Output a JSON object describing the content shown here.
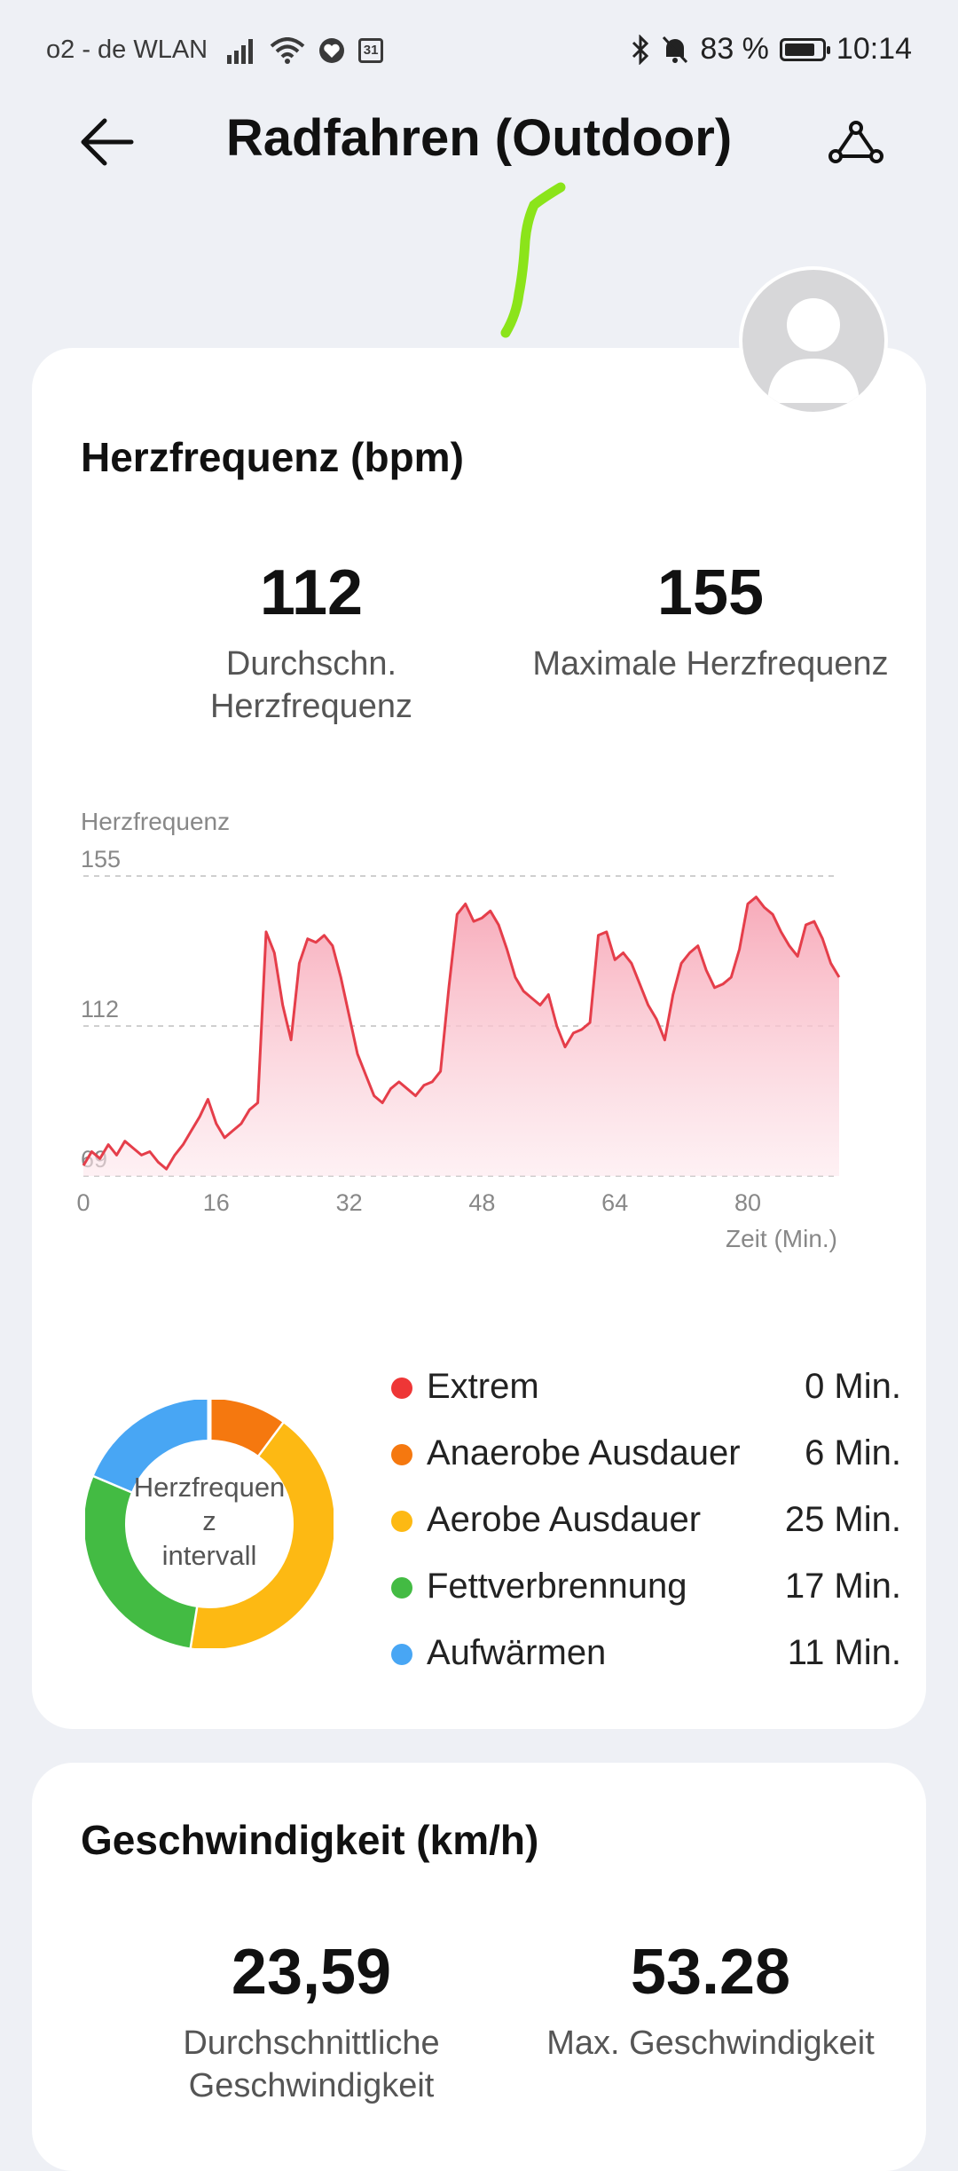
{
  "status_bar": {
    "carrier": "o2 - de WLAN",
    "calendar_day": "31",
    "battery": "83 %",
    "battery_level": 0.83,
    "time": "10:14"
  },
  "header": {
    "title": "Radfahren (Outdoor)"
  },
  "heart_rate": {
    "section_title": "Herzfrequenz (bpm)",
    "avg_value": "112",
    "avg_label_line1": "Durchschn.",
    "avg_label_line2": "Herzfrequenz",
    "max_value": "155",
    "max_label": "Maximale Herzfrequenz",
    "zone_center_line1": "Herzfrequen",
    "zone_center_line2": "z",
    "zone_center_line3": "intervall",
    "zones": [
      {
        "name": "Extrem",
        "value": "0 Min.",
        "minutes": 0,
        "color": "#ee3636"
      },
      {
        "name": "Anaerobe Ausdauer",
        "value": "6 Min.",
        "minutes": 6,
        "color": "#f5780f"
      },
      {
        "name": "Aerobe Ausdauer",
        "value": "25 Min.",
        "minutes": 25,
        "color": "#fdb913"
      },
      {
        "name": "Fettverbrennung",
        "value": "17 Min.",
        "minutes": 17,
        "color": "#43bb43"
      },
      {
        "name": "Aufwärmen",
        "value": "11 Min.",
        "minutes": 11,
        "color": "#48a6f4"
      }
    ]
  },
  "speed": {
    "section_title": "Geschwindigkeit (km/h)",
    "avg_value": "23,59",
    "avg_label_line1": "Durchschnittliche",
    "avg_label_line2": "Geschwindigkeit",
    "max_value": "53.28",
    "max_label": "Max. Geschwindigkeit"
  },
  "chart_data": {
    "type": "area",
    "ylabel": "Herzfrequenz",
    "xlabel": "Zeit (Min.)",
    "y_ticks": [
      155,
      112,
      69
    ],
    "x_ticks": [
      0,
      16,
      32,
      48,
      64,
      80
    ],
    "ylim": [
      69,
      155
    ],
    "xlim": [
      0,
      91
    ],
    "grid": true,
    "line_color": "#e53e4a",
    "fill_color": "#f7b8c4",
    "x": [
      0,
      1,
      2,
      3,
      4,
      5,
      6,
      7,
      8,
      9,
      10,
      11,
      12,
      13,
      14,
      15,
      16,
      17,
      18,
      19,
      20,
      21,
      22,
      23,
      24,
      25,
      26,
      27,
      28,
      29,
      30,
      31,
      32,
      33,
      34,
      35,
      36,
      37,
      38,
      39,
      40,
      41,
      42,
      43,
      44,
      45,
      46,
      47,
      48,
      49,
      50,
      51,
      52,
      53,
      54,
      55,
      56,
      57,
      58,
      59,
      60,
      61,
      62,
      63,
      64,
      65,
      66,
      67,
      68,
      69,
      70,
      71,
      72,
      73,
      74,
      75,
      76,
      77,
      78,
      79,
      80,
      81,
      82,
      83,
      84,
      85,
      86,
      87,
      88,
      89,
      90,
      91
    ],
    "y": [
      72,
      76,
      74,
      78,
      75,
      79,
      77,
      75,
      76,
      73,
      71,
      75,
      78,
      82,
      86,
      91,
      84,
      80,
      82,
      84,
      88,
      90,
      139,
      133,
      118,
      108,
      130,
      137,
      136,
      138,
      135,
      126,
      115,
      104,
      98,
      92,
      90,
      94,
      96,
      94,
      92,
      95,
      96,
      99,
      123,
      144,
      147,
      142,
      143,
      145,
      141,
      134,
      126,
      122,
      120,
      118,
      121,
      112,
      106,
      110,
      111,
      113,
      138,
      139,
      131,
      133,
      130,
      124,
      118,
      114,
      108,
      121,
      130,
      133,
      135,
      128,
      123,
      124,
      126,
      134,
      147,
      149,
      146,
      144,
      139,
      135,
      132,
      141,
      142,
      137,
      130,
      126
    ]
  }
}
